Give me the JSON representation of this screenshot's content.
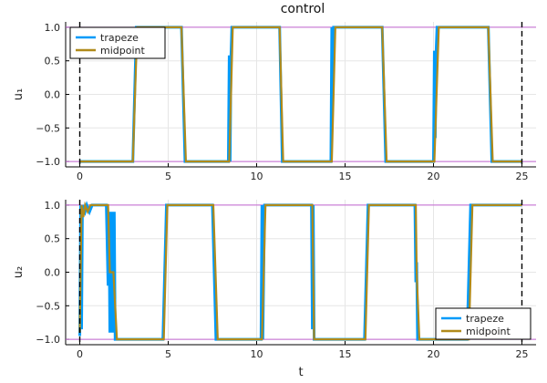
{
  "chart_data": {
    "type": "line",
    "title": "control",
    "xlabel": "t",
    "xlim": [
      -0.8,
      25.8
    ],
    "ylim": [
      -1.08,
      1.08
    ],
    "xticks": [
      0,
      5,
      10,
      15,
      20,
      25
    ],
    "xtick_labels": [
      "0",
      "5",
      "10",
      "15",
      "20",
      "25"
    ],
    "yticks": [
      -1.0,
      -0.5,
      0.0,
      0.5,
      1.0
    ],
    "ytick_labels": [
      "−1.0",
      "−0.5",
      "0.0",
      "0.5",
      "1.0"
    ],
    "grid": true,
    "reference_lines": {
      "horizontal_y": [
        -1,
        1
      ],
      "horizontal_color": "#c266d1",
      "vertical_dashed_x": [
        0,
        25
      ],
      "vertical_color": "#000000"
    },
    "colors": {
      "trapeze": "#009af9",
      "midpoint": "#b08a1a"
    },
    "panels": [
      {
        "ylabel": "u₁",
        "legend_position": "top-left",
        "series": [
          {
            "name": "trapeze",
            "x": [
              0,
              3.0,
              3.2,
              5.75,
              5.95,
              8.4,
              8.45,
              8.5,
              8.55,
              8.6,
              11.3,
              11.45,
              14.2,
              14.25,
              14.3,
              14.35,
              14.4,
              17.1,
              17.3,
              20.0,
              20.05,
              20.1,
              20.15,
              20.2,
              23.1,
              23.3,
              25
            ],
            "y": [
              -1,
              -1,
              1,
              1,
              -1,
              -1,
              0.58,
              -1,
              0.58,
              1,
              1,
              -1,
              -1,
              1,
              -0.18,
              1,
              1,
              1,
              -1,
              -1,
              0.65,
              -0.65,
              0.65,
              1,
              1,
              -1,
              -1
            ]
          },
          {
            "name": "midpoint",
            "x": [
              0,
              3.0,
              3.25,
              5.75,
              6.0,
              8.45,
              8.65,
              11.3,
              11.5,
              14.25,
              14.45,
              17.1,
              17.35,
              20.05,
              20.3,
              23.1,
              23.35,
              25
            ],
            "y": [
              -1,
              -1,
              1,
              1,
              -1,
              -1,
              1,
              1,
              -1,
              -1,
              1,
              1,
              -1,
              -1,
              1,
              1,
              -1,
              -1
            ]
          }
        ]
      },
      {
        "ylabel": "u₂",
        "xlabel": "t",
        "legend_position": "bottom-right",
        "series": [
          {
            "name": "trapeze",
            "x": [
              0,
              0.05,
              0.1,
              0.15,
              0.3,
              0.4,
              0.55,
              0.7,
              1.5,
              1.6,
              1.65,
              1.7,
              1.75,
              1.8,
              1.85,
              1.9,
              1.95,
              2.0,
              2.1,
              4.7,
              4.9,
              7.5,
              7.7,
              10.25,
              10.3,
              10.35,
              10.45,
              13.1,
              13.15,
              13.2,
              13.25,
              13.3,
              16.1,
              16.3,
              18.95,
              19.0,
              19.05,
              19.1,
              19.2,
              21.9,
              22.1,
              25
            ],
            "y": [
              -0.95,
              1,
              -0.85,
              1,
              0.9,
              1,
              0.9,
              1,
              1,
              -0.2,
              0.9,
              -0.9,
              0.9,
              -0.9,
              0.9,
              -0.9,
              0.9,
              -1,
              -1,
              -1,
              1,
              1,
              -1,
              -1,
              1,
              -1,
              1,
              1,
              -0.85,
              1,
              -1,
              -1,
              -1,
              1,
              1,
              -0.15,
              0.15,
              -1,
              -1,
              -1,
              1,
              1
            ]
          },
          {
            "name": "midpoint",
            "x": [
              0,
              0.1,
              0.2,
              0.3,
              0.45,
              0.6,
              0.8,
              1.6,
              1.7,
              1.9,
              2.1,
              4.75,
              4.95,
              7.55,
              7.8,
              10.3,
              10.5,
              13.15,
              13.2,
              13.25,
              13.4,
              16.15,
              16.35,
              19.0,
              19.05,
              19.2,
              22.0,
              22.2,
              25
            ],
            "y": [
              -0.9,
              1,
              0.82,
              1,
              0.9,
              1,
              1,
              1,
              0.0,
              0.0,
              -1,
              -1,
              1,
              1,
              -1,
              -1,
              1,
              1,
              0.0,
              -1,
              -1,
              -1,
              1,
              1,
              0.0,
              -1,
              -1,
              1,
              1
            ]
          }
        ]
      }
    ]
  }
}
